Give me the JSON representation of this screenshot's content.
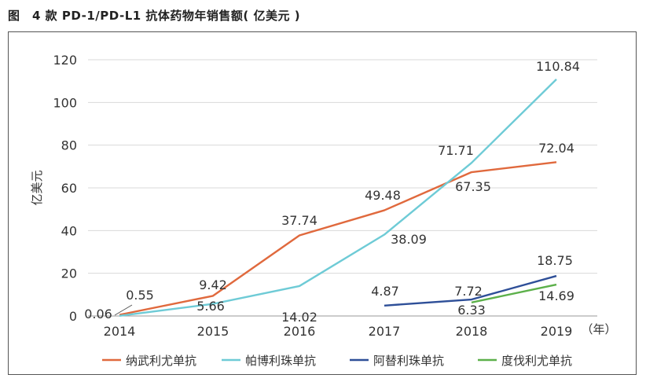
{
  "caption": "图　4 款 PD-1/PD-L1 抗体药物年销售额( 亿美元 )",
  "chart_data": {
    "type": "line",
    "title": "",
    "ylabel": "亿美元",
    "xlabel": "",
    "x_unit": "（年）",
    "categories": [
      "2014",
      "2015",
      "2016",
      "2017",
      "2018",
      "2019"
    ],
    "ylim": [
      0,
      120
    ],
    "yticks": [
      0,
      20,
      40,
      60,
      80,
      100,
      120
    ],
    "grid": true,
    "legend_position": "bottom",
    "series": [
      {
        "name": "纳武利尤单抗",
        "color": "#e0693d",
        "values": [
          0.55,
          9.42,
          37.74,
          49.48,
          67.35,
          72.04
        ],
        "labels": [
          "0.55",
          "9.42",
          "37.74",
          "49.48",
          "67.35",
          "72.04"
        ]
      },
      {
        "name": "帕博利珠单抗",
        "color": "#6ecbd6",
        "values": [
          0.06,
          5.66,
          14.02,
          38.09,
          71.71,
          110.84
        ],
        "labels": [
          "0.06",
          "5.66",
          "14.02",
          "38.09",
          "71.71",
          "110.84"
        ]
      },
      {
        "name": "阿替利珠单抗",
        "color": "#2e4f98",
        "values": [
          null,
          null,
          null,
          4.87,
          7.72,
          18.75
        ],
        "labels": [
          null,
          null,
          null,
          "4.87",
          "7.72",
          "18.75"
        ]
      },
      {
        "name": "度伐利尤单抗",
        "color": "#5cb04a",
        "values": [
          null,
          null,
          null,
          null,
          6.33,
          14.69
        ],
        "labels": [
          null,
          null,
          null,
          null,
          "6.33",
          "14.69"
        ]
      }
    ]
  }
}
